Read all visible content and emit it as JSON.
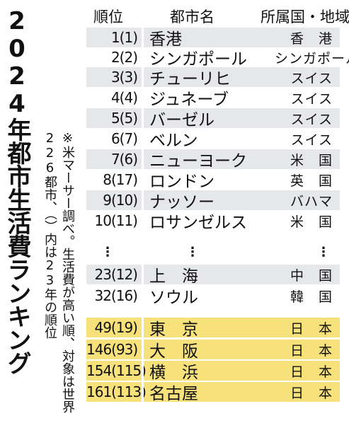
{
  "title": "2024年都市生活費ランキング",
  "note": "※米マーサー調べ。生活費が高い順、対象は世界226都市、（）内は23年の順位",
  "headers": {
    "rank": "順位",
    "city": "都市名",
    "country": "所属国・地域"
  },
  "ellipsis": "⋮",
  "highlight_colors": {
    "gray": "#e6e7eb",
    "yellow": "#f7e17a"
  },
  "rows": [
    {
      "rank": "1(1)",
      "city": "香港",
      "country": "香　港",
      "style": "gray"
    },
    {
      "rank": "2(2)",
      "city": "シンガポール",
      "country": "シンガポール",
      "style": "white"
    },
    {
      "rank": "3(3)",
      "city": "チューリヒ",
      "country": "スイス",
      "style": "gray"
    },
    {
      "rank": "4(4)",
      "city": "ジュネーブ",
      "country": "スイス",
      "style": "white"
    },
    {
      "rank": "5(5)",
      "city": "バーゼル",
      "country": "スイス",
      "style": "gray"
    },
    {
      "rank": "6(7)",
      "city": "ベルン",
      "country": "スイス",
      "style": "white"
    },
    {
      "rank": "7(6)",
      "city": "ニューヨーク",
      "country": "米　国",
      "style": "gray"
    },
    {
      "rank": "8(17)",
      "city": "ロンドン",
      "country": "英　国",
      "style": "white"
    },
    {
      "rank": "9(10)",
      "city": "ナッソー",
      "country": "バハマ",
      "style": "gray"
    },
    {
      "rank": "10(11)",
      "city": "ロサンゼルス",
      "country": "米　国",
      "style": "white"
    },
    {
      "rank": "23(12)",
      "city": "上　海",
      "country": "中　国",
      "style": "gray"
    },
    {
      "rank": "32(16)",
      "city": "ソウル",
      "country": "韓　国",
      "style": "white"
    },
    {
      "rank": "49(19)",
      "city": "東　京",
      "country": "日　本",
      "style": "yellow"
    },
    {
      "rank": "146(93)",
      "city": "大　阪",
      "country": "日　本",
      "style": "yellow"
    },
    {
      "rank": "154(115)",
      "city": "横　浜",
      "country": "日　本",
      "style": "yellow"
    },
    {
      "rank": "161(113)",
      "city": "名古屋",
      "country": "日　本",
      "style": "yellow"
    }
  ]
}
